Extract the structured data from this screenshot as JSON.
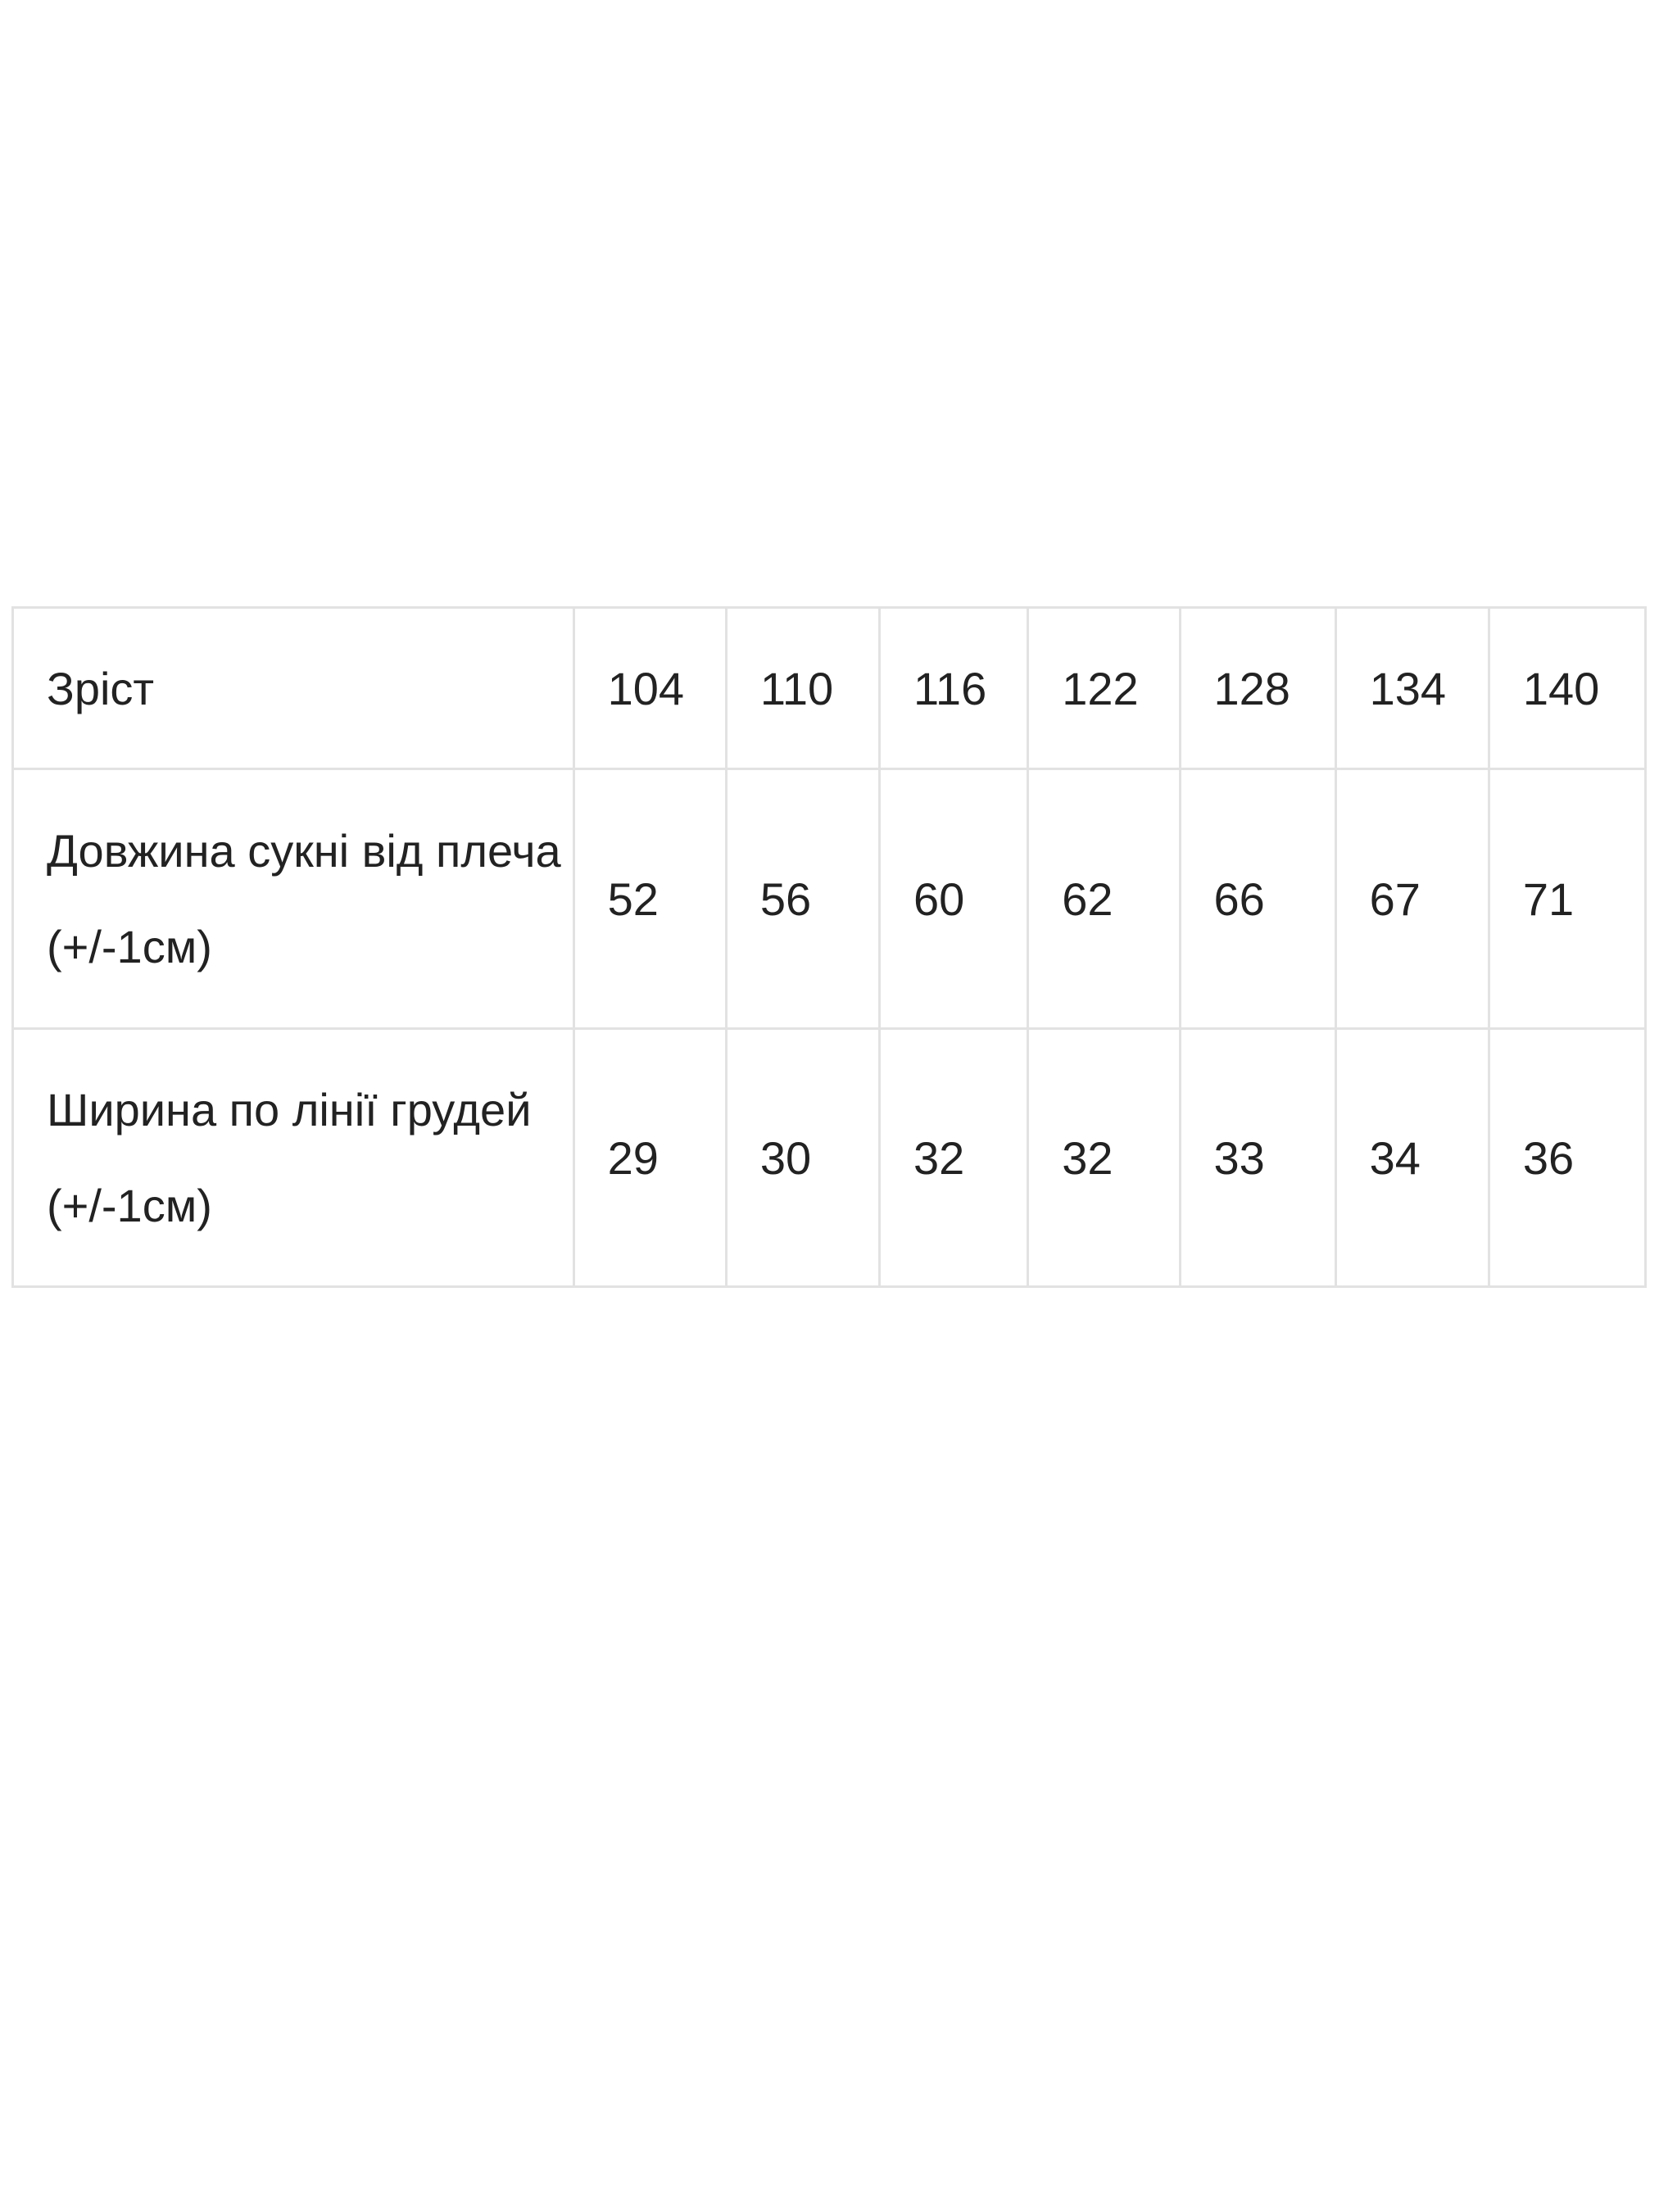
{
  "size_table": {
    "header": {
      "label": "Зріст",
      "values": [
        "104",
        "110",
        "116",
        "122",
        "128",
        "134",
        "140"
      ]
    },
    "rows": [
      {
        "label": "Довжина сукні від плеча (+/-1см)",
        "values": [
          "52",
          "56",
          "60",
          "62",
          "66",
          "67",
          "71"
        ]
      },
      {
        "label": "Ширина по лінії грудей (+/-1см)",
        "values": [
          "29",
          "30",
          "32",
          "32",
          "33",
          "34",
          "36"
        ]
      }
    ]
  }
}
